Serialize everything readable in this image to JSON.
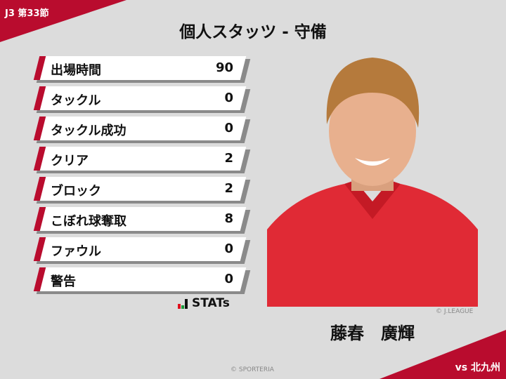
{
  "header": {
    "round": "J3 第33節",
    "title": "個人スタッツ - 守備",
    "opponent": "vs 北九州"
  },
  "stats": [
    {
      "label": "出場時間",
      "value": "90"
    },
    {
      "label": "タックル",
      "value": "0"
    },
    {
      "label": "タックル成功",
      "value": "0"
    },
    {
      "label": "クリア",
      "value": "2"
    },
    {
      "label": "ブロック",
      "value": "2"
    },
    {
      "label": "こぼれ球奪取",
      "value": "8"
    },
    {
      "label": "ファウル",
      "value": "0"
    },
    {
      "label": "警告",
      "value": "0"
    }
  ],
  "brand": {
    "stats_logo": "STATs",
    "photo_credit": "© J.LEAGUE",
    "footer_credit": "© SPORTERIA"
  },
  "player": {
    "name": "藤春　廣輝"
  },
  "colors": {
    "accent": "#b90c2e",
    "background": "#dcdcdc"
  }
}
